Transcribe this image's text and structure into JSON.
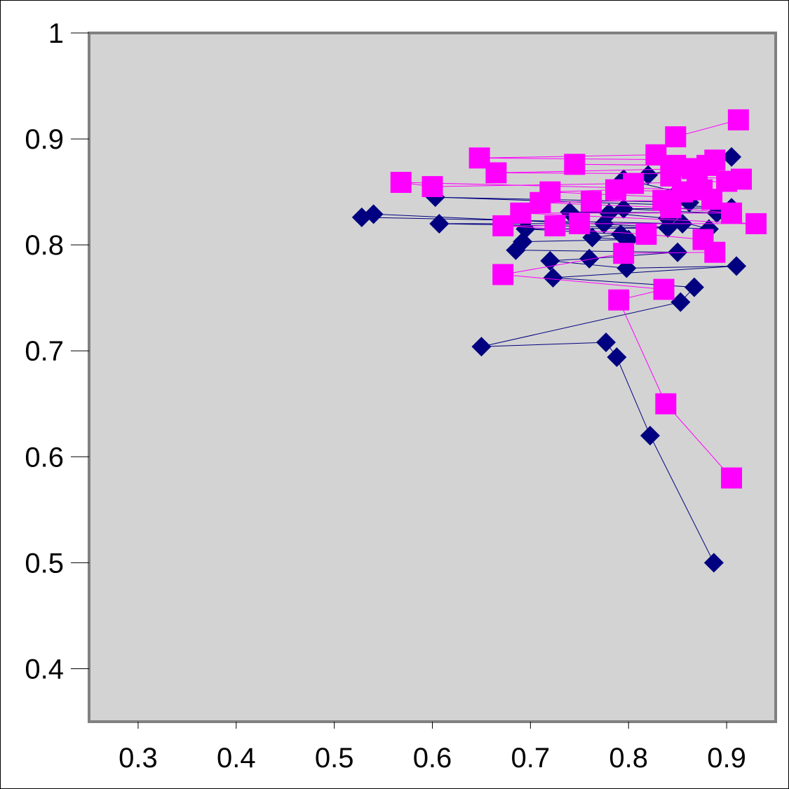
{
  "chart_data": {
    "type": "scatter",
    "title": "",
    "xlabel": "",
    "ylabel": "",
    "xlim": [
      0.25,
      0.95
    ],
    "ylim": [
      0.35,
      1.0
    ],
    "x_ticks": [
      0.3,
      0.4,
      0.5,
      0.6,
      0.7,
      0.8,
      0.9
    ],
    "x_tick_labels": [
      "0.3",
      "0.4",
      "0.5",
      "0.6",
      "0.7",
      "0.8",
      "0.9"
    ],
    "y_ticks": [
      0.4,
      0.5,
      0.6,
      0.7,
      0.8,
      0.9,
      1.0
    ],
    "y_tick_labels": [
      "0.4",
      "0.5",
      "0.6",
      "0.7",
      "0.8",
      "0.9",
      "1"
    ],
    "grid": false,
    "legend": "none",
    "plot_background": "#d3d3d3",
    "series": [
      {
        "marker": "diamond",
        "color": "#000080",
        "points": [
          [
            0.887,
            0.5
          ],
          [
            0.822,
            0.62
          ],
          [
            0.788,
            0.694
          ],
          [
            0.777,
            0.708
          ],
          [
            0.65,
            0.704
          ],
          [
            0.853,
            0.746
          ],
          [
            0.867,
            0.76
          ],
          [
            0.723,
            0.769
          ],
          [
            0.91,
            0.78
          ],
          [
            0.798,
            0.778
          ],
          [
            0.72,
            0.785
          ],
          [
            0.76,
            0.787
          ],
          [
            0.85,
            0.793
          ],
          [
            0.685,
            0.795
          ],
          [
            0.692,
            0.803
          ],
          [
            0.8,
            0.805
          ],
          [
            0.763,
            0.807
          ],
          [
            0.792,
            0.81
          ],
          [
            0.695,
            0.815
          ],
          [
            0.84,
            0.816
          ],
          [
            0.607,
            0.82
          ],
          [
            0.775,
            0.82
          ],
          [
            0.855,
            0.82
          ],
          [
            0.528,
            0.826
          ],
          [
            0.54,
            0.829
          ],
          [
            0.882,
            0.815
          ],
          [
            0.84,
            0.825
          ],
          [
            0.78,
            0.83
          ],
          [
            0.74,
            0.831
          ],
          [
            0.89,
            0.83
          ],
          [
            0.795,
            0.834
          ],
          [
            0.905,
            0.835
          ],
          [
            0.835,
            0.838
          ],
          [
            0.762,
            0.84
          ],
          [
            0.603,
            0.845
          ],
          [
            0.862,
            0.84
          ],
          [
            0.85,
            0.85
          ],
          [
            0.795,
            0.862
          ],
          [
            0.82,
            0.866
          ],
          [
            0.905,
            0.883
          ]
        ]
      },
      {
        "marker": "square",
        "color": "#ff00ff",
        "points": [
          [
            0.905,
            0.58
          ],
          [
            0.838,
            0.65
          ],
          [
            0.79,
            0.748
          ],
          [
            0.836,
            0.758
          ],
          [
            0.672,
            0.772
          ],
          [
            0.795,
            0.792
          ],
          [
            0.888,
            0.793
          ],
          [
            0.876,
            0.805
          ],
          [
            0.818,
            0.81
          ],
          [
            0.672,
            0.818
          ],
          [
            0.725,
            0.818
          ],
          [
            0.75,
            0.82
          ],
          [
            0.93,
            0.82
          ],
          [
            0.69,
            0.83
          ],
          [
            0.905,
            0.83
          ],
          [
            0.843,
            0.835
          ],
          [
            0.71,
            0.84
          ],
          [
            0.762,
            0.841
          ],
          [
            0.835,
            0.842
          ],
          [
            0.885,
            0.843
          ],
          [
            0.72,
            0.85
          ],
          [
            0.787,
            0.852
          ],
          [
            0.855,
            0.85
          ],
          [
            0.875,
            0.852
          ],
          [
            0.568,
            0.859
          ],
          [
            0.6,
            0.855
          ],
          [
            0.805,
            0.858
          ],
          [
            0.9,
            0.86
          ],
          [
            0.915,
            0.862
          ],
          [
            0.843,
            0.865
          ],
          [
            0.87,
            0.867
          ],
          [
            0.665,
            0.868
          ],
          [
            0.865,
            0.872
          ],
          [
            0.848,
            0.875
          ],
          [
            0.745,
            0.876
          ],
          [
            0.88,
            0.875
          ],
          [
            0.888,
            0.88
          ],
          [
            0.648,
            0.882
          ],
          [
            0.828,
            0.885
          ],
          [
            0.848,
            0.902
          ],
          [
            0.912,
            0.918
          ]
        ]
      }
    ]
  }
}
